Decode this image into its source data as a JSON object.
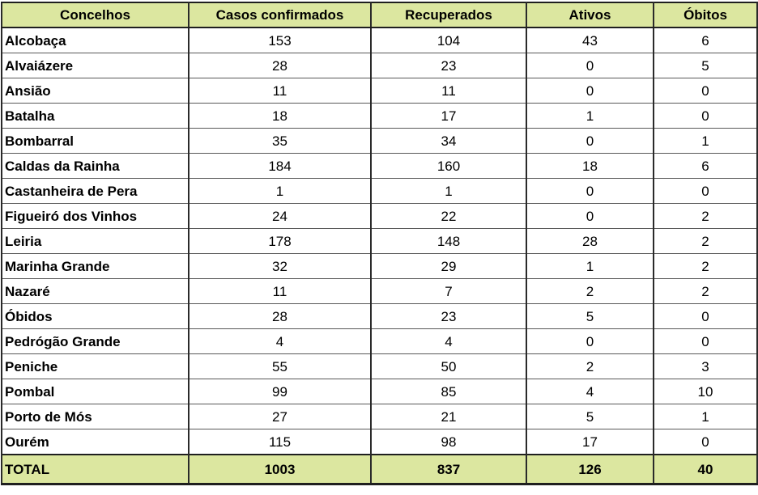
{
  "chart_data": {
    "type": "table",
    "title": "",
    "columns": [
      "Concelhos",
      "Casos confirmados",
      "Recuperados",
      "Ativos",
      "Óbitos"
    ],
    "rows": [
      [
        "Alcobaça",
        153,
        104,
        43,
        6
      ],
      [
        "Alvaiázere",
        28,
        23,
        0,
        5
      ],
      [
        "Ansião",
        11,
        11,
        0,
        0
      ],
      [
        "Batalha",
        18,
        17,
        1,
        0
      ],
      [
        "Bombarral",
        35,
        34,
        0,
        1
      ],
      [
        "Caldas da Rainha",
        184,
        160,
        18,
        6
      ],
      [
        "Castanheira de Pera",
        1,
        1,
        0,
        0
      ],
      [
        "Figueiró dos Vinhos",
        24,
        22,
        0,
        2
      ],
      [
        "Leiria",
        178,
        148,
        28,
        2
      ],
      [
        "Marinha Grande",
        32,
        29,
        1,
        2
      ],
      [
        "Nazaré",
        11,
        7,
        2,
        2
      ],
      [
        "Óbidos",
        28,
        23,
        5,
        0
      ],
      [
        "Pedrógão Grande",
        4,
        4,
        0,
        0
      ],
      [
        "Peniche",
        55,
        50,
        2,
        3
      ],
      [
        "Pombal",
        99,
        85,
        4,
        10
      ],
      [
        "Porto de Mós",
        27,
        21,
        5,
        1
      ],
      [
        "Ourém",
        115,
        98,
        17,
        0
      ]
    ],
    "total_row": [
      "TOTAL",
      1003,
      837,
      126,
      40
    ]
  },
  "colors": {
    "header_bg": "#dce7a0",
    "total_bg": "#dce7a0",
    "text": "#000000",
    "border_outer": "#1f1f1f",
    "border_inner_horizontal": "#595959"
  }
}
